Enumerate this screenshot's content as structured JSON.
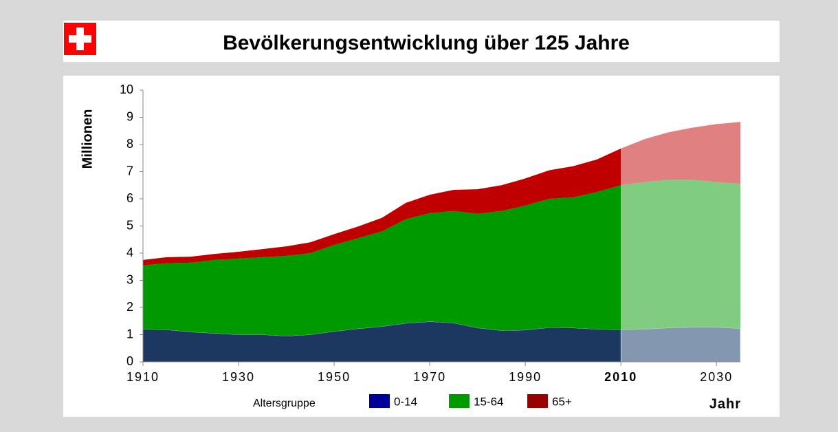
{
  "chart_data": {
    "type": "stacked_area",
    "title": "Bevölkerungsentwicklung über 125 Jahre",
    "y_label": "Millionen",
    "x_label": "Jahr",
    "legend_title": "Altersgruppe",
    "x": [
      1910,
      1915,
      1920,
      1925,
      1930,
      1935,
      1940,
      1945,
      1950,
      1955,
      1960,
      1965,
      1970,
      1975,
      1980,
      1985,
      1990,
      1995,
      2000,
      2005,
      2010,
      2015,
      2020,
      2025,
      2030,
      2035
    ],
    "series": [
      {
        "name": "0-14",
        "color": "#1c3861",
        "projection_color": "#8497b0",
        "legend_color": "#000099",
        "values": [
          1.2,
          1.18,
          1.1,
          1.05,
          1.0,
          1.0,
          0.95,
          1.0,
          1.12,
          1.22,
          1.3,
          1.42,
          1.48,
          1.43,
          1.25,
          1.15,
          1.17,
          1.26,
          1.25,
          1.2,
          1.18,
          1.2,
          1.25,
          1.27,
          1.27,
          1.23
        ]
      },
      {
        "name": "15-64",
        "color": "#009900",
        "projection_color": "#80cc80",
        "legend_color": "#009900",
        "values": [
          2.35,
          2.45,
          2.55,
          2.7,
          2.8,
          2.85,
          2.95,
          3.0,
          3.18,
          3.33,
          3.5,
          3.83,
          3.99,
          4.12,
          4.2,
          4.4,
          4.58,
          4.74,
          4.8,
          5.05,
          5.32,
          5.42,
          5.45,
          5.43,
          5.35,
          5.32
        ]
      },
      {
        "name": "65+",
        "color": "#c00000",
        "projection_color": "#e08080",
        "legend_color": "#990000",
        "values": [
          0.2,
          0.22,
          0.22,
          0.22,
          0.25,
          0.3,
          0.35,
          0.4,
          0.4,
          0.43,
          0.5,
          0.6,
          0.68,
          0.78,
          0.9,
          0.95,
          1.0,
          1.05,
          1.15,
          1.2,
          1.35,
          1.58,
          1.75,
          1.92,
          2.13,
          2.28
        ]
      }
    ],
    "projection_from": 2010,
    "xlim": [
      1910,
      2035
    ],
    "xticks": [
      1910,
      1930,
      1950,
      1970,
      1990,
      2010,
      2030
    ],
    "ylim": [
      0,
      10
    ],
    "yticks": [
      0,
      1,
      2,
      3,
      4,
      5,
      6,
      7,
      8,
      9,
      10
    ]
  }
}
